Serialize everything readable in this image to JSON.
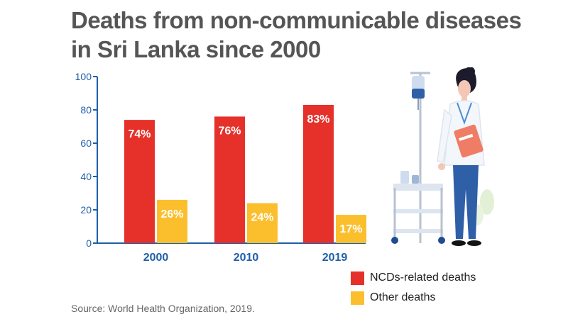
{
  "title": "Deaths from non-communicable diseases in Sri Lanka since 2000",
  "source": "Source: World Health Organization, 2019.",
  "colors": {
    "ncd": "#e5312a",
    "other": "#fbbf2e",
    "axis": "#1f5fa8",
    "category_label": "#1f5fa8"
  },
  "legend": {
    "placement": "bottom-right",
    "items": [
      {
        "label": "NCDs-related deaths",
        "color": "#e5312a"
      },
      {
        "label": "Other deaths",
        "color": "#fbbf2e"
      }
    ]
  },
  "illustration": {
    "icon": "doctor-with-iv-stand-icon"
  },
  "chart_data": {
    "type": "bar",
    "title": "Deaths from non-communicable diseases in Sri Lanka since 2000",
    "xlabel": "",
    "ylabel": "",
    "ylim": [
      0,
      100
    ],
    "yticks": [
      0,
      20,
      40,
      60,
      80,
      100
    ],
    "grid": false,
    "categories": [
      "2000",
      "2010",
      "2019"
    ],
    "series": [
      {
        "name": "NCDs-related deaths",
        "values": [
          74,
          76,
          83
        ],
        "labels": [
          "74%",
          "76%",
          "83%"
        ]
      },
      {
        "name": "Other deaths",
        "values": [
          26,
          24,
          17
        ],
        "labels": [
          "26%",
          "24%",
          "17%"
        ]
      }
    ]
  }
}
